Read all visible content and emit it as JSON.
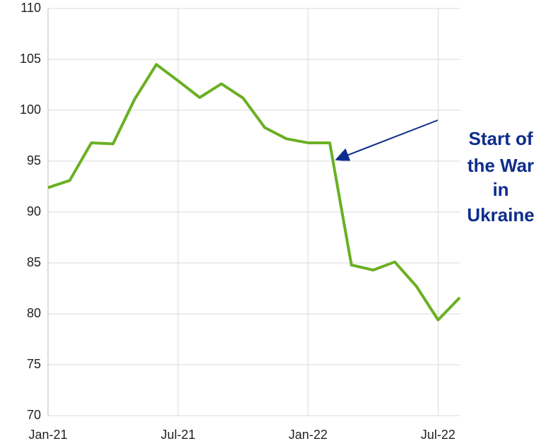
{
  "chart_data": {
    "type": "line",
    "categories": [
      "Jan-21",
      null,
      null,
      null,
      null,
      null,
      "Jul-21",
      null,
      null,
      null,
      null,
      null,
      "Jan-22",
      null,
      null,
      null,
      null,
      null,
      "Jul-22",
      null
    ],
    "series": [
      {
        "name": null,
        "color": "#6ab023",
        "values": [
          92.4,
          93.1,
          96.8,
          96.7,
          101.1,
          104.5,
          102.9,
          101.25,
          102.6,
          101.2,
          98.3,
          97.2,
          96.8,
          96.8,
          84.8,
          84.3,
          85.1,
          82.7,
          79.4,
          81.6
        ]
      }
    ],
    "ylim": [
      70,
      110
    ],
    "yticks": [
      70,
      75,
      80,
      85,
      90,
      95,
      100,
      105,
      110
    ],
    "grid": true,
    "annotation": {
      "lines": [
        "Start of",
        "the War",
        "in",
        "Ukraine"
      ]
    }
  }
}
